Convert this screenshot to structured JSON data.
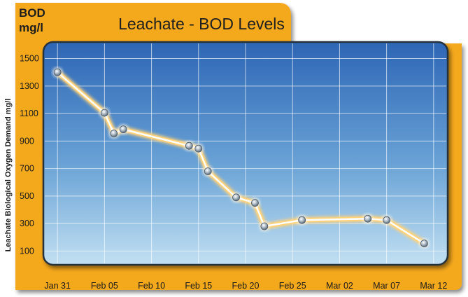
{
  "chart_data": {
    "type": "line",
    "title": "Leachate - BOD Levels",
    "unit_label_line1": "BOD",
    "unit_label_line2": "mg/l",
    "ylabel": "Leachate Biological Oxygen Demand mg/l",
    "xlabel": "",
    "x_ticks": [
      "Jan 31",
      "Feb 05",
      "Feb 10",
      "Feb 15",
      "Feb 20",
      "Feb 25",
      "Mar 02",
      "Mar 07",
      "Mar 12"
    ],
    "y_ticks": [
      100,
      300,
      500,
      700,
      900,
      1100,
      1300,
      1500
    ],
    "ylim": [
      0,
      1620
    ],
    "xlim_days": [
      -1.5,
      41.5
    ],
    "grid": true,
    "legend": "none",
    "series": [
      {
        "x": [
          "Jan 31",
          "Feb 05",
          "Feb 06",
          "Feb 07",
          "Feb 14",
          "Feb 15",
          "Feb 16",
          "Feb 19",
          "Feb 21",
          "Feb 22",
          "Feb 26",
          "Mar 05",
          "Mar 07",
          "Mar 11"
        ],
        "y": [
          1400,
          1105,
          955,
          985,
          865,
          845,
          680,
          490,
          450,
          280,
          325,
          335,
          325,
          155
        ]
      }
    ],
    "colors": {
      "frame": "#f4a81f",
      "plot_top": "#2d66b5",
      "plot_bottom": "#bcdcef",
      "line_glow": "#ffd27a",
      "line_core": "#ffffff",
      "marker": "#8a9aa8"
    }
  }
}
